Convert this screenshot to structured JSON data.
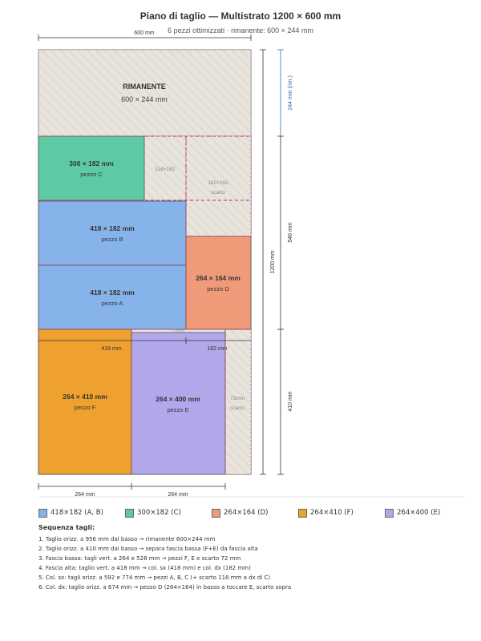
{
  "header": {
    "title": "Piano di taglio — Multistrato 1200 × 600 mm",
    "subtitle": "6 pezzi ottimizzati · rimanente: 600 × 244 mm"
  },
  "colors": {
    "A": "#86b4ea",
    "B": "#86b4ea",
    "C": "#5ecaa4",
    "D": "#ef9b7a",
    "E": "#b0a8ea",
    "F": "#eea12f",
    "scrap_fill": "#e8e4dc",
    "scrap_hatch": "#cfc9be",
    "cut_line": "#b2346a",
    "accent_blue": "#2f6db3"
  },
  "sheet": {
    "width_label": "600 mm",
    "height_label": "1200 mm",
    "rimanente": {
      "label": "RIMANENTE",
      "dims": "600 × 244 mm"
    }
  },
  "pieces": {
    "C": {
      "dims": "300 × 182 mm",
      "name": "pezzo C"
    },
    "B": {
      "dims": "418 × 182 mm",
      "name": "pezzo B"
    },
    "A": {
      "dims": "418 × 182 mm",
      "name": "pezzo A"
    },
    "D": {
      "dims": "264 × 164 mm",
      "name": "pezzo D"
    },
    "F": {
      "dims": "264 × 410 mm",
      "name": "pezzo F"
    },
    "E": {
      "dims": "264 × 400 mm",
      "name": "pezzo E"
    }
  },
  "scraps": {
    "s118": "118×182",
    "s182_dims": "182×262",
    "s182_label": "scarto",
    "s72_dims": "72mm",
    "s72_label": "scarto",
    "gap_label": "10mm"
  },
  "dimensions": {
    "col_left": "418 mm",
    "col_right": "182 mm",
    "bottom_left": "264 mm",
    "bottom_right": "264 mm",
    "right_top": "244 mm (rim.)",
    "right_mid": "546 mm",
    "right_bottom": "410 mm"
  },
  "legend": [
    {
      "label": "418×182 (A, B)",
      "color": "#86b4ea"
    },
    {
      "label": "300×182 (C)",
      "color": "#5ecaa4"
    },
    {
      "label": "264×164 (D)",
      "color": "#ef9b7a"
    },
    {
      "label": "264×410 (F)",
      "color": "#eea12f"
    },
    {
      "label": "264×400 (E)",
      "color": "#b0a8ea"
    }
  ],
  "notes": {
    "heading": "Sequenza tagli:",
    "lines": [
      "1. Taglio orizz. a 956 mm dal basso → rimanente 600×244 mm",
      "2. Taglio orizz. a 410 mm dal basso → separa fascia bassa (F+E) da fascia alta",
      "3. Fascia bassa: tagli vert. a 264 e 528 mm → pezzi F, E e scarto 72 mm",
      "4. Fascia alta: taglio vert. a 418 mm → col. sx (418 mm) e col. dx (182 mm)",
      "5. Col. sx: tagli orizz. a 592 e 774 mm → pezzi A, B, C (+ scarto 118 mm a dx di C)",
      "6. Col. dx: taglio orizz. a 674 mm → pezzo D (264×164) in basso a toccare E, scarto sopra"
    ]
  }
}
